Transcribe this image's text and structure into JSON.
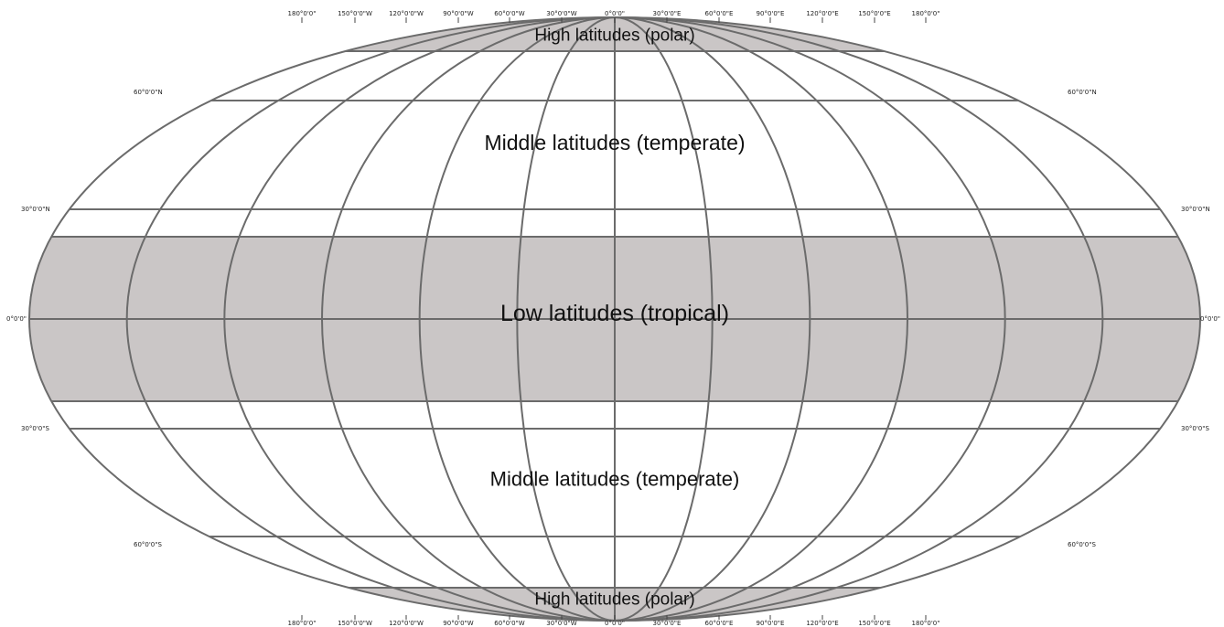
{
  "colors": {
    "band_fill": "#cac6c6",
    "grid_stroke": "#6b6b6b",
    "background": "#ffffff"
  },
  "zones": [
    {
      "id": "polar-north",
      "label": "High latitudes (polar)",
      "fill": true,
      "lat_from": 66.5,
      "lat_to": 90
    },
    {
      "id": "temperate-north",
      "label": "Middle latitudes (temperate)",
      "fill": false,
      "lat_from": 23.5,
      "lat_to": 66.5
    },
    {
      "id": "tropical",
      "label": "Low latitudes (tropical)",
      "fill": true,
      "lat_from": -23.5,
      "lat_to": 23.5
    },
    {
      "id": "temperate-south",
      "label": "Middle latitudes (temperate)",
      "fill": false,
      "lat_from": -66.5,
      "lat_to": -23.5
    },
    {
      "id": "polar-south",
      "label": "High latitudes (polar)",
      "fill": true,
      "lat_from": -90,
      "lat_to": -66.5
    }
  ],
  "meridian_labels": {
    "top": [
      "180°0'0\"",
      "150°0'0\"W",
      "120°0'0\"W",
      "90°0'0\"W",
      "60°0'0\"W",
      "30°0'0\"W",
      "0°0'0\"",
      "30°0'0\"E",
      "60°0'0\"E",
      "90°0'0\"E",
      "120°0'0\"E",
      "150°0'0\"E",
      "180°0'0\""
    ],
    "bottom": [
      "180°0'0\"",
      "150°0'0\"W",
      "120°0'0\"W",
      "90°0'0\"W",
      "60°0'0\"W",
      "30°0'0\"W",
      "0°0'0\"",
      "30°0'0\"E",
      "60°0'0\"E",
      "90°0'0\"E",
      "120°0'0\"E",
      "150°0'0\"E",
      "180°0'0\""
    ]
  },
  "parallel_labels": {
    "left": [
      "60°0'0\"N",
      "30°0'0\"N",
      "0°0'0\"",
      "30°0'0\"S",
      "60°0'0\"S"
    ],
    "right": [
      "60°0'0\"N",
      "30°0'0\"N",
      "0°0'0\"",
      "30°0'0\"S",
      "60°0'0\"S"
    ]
  }
}
